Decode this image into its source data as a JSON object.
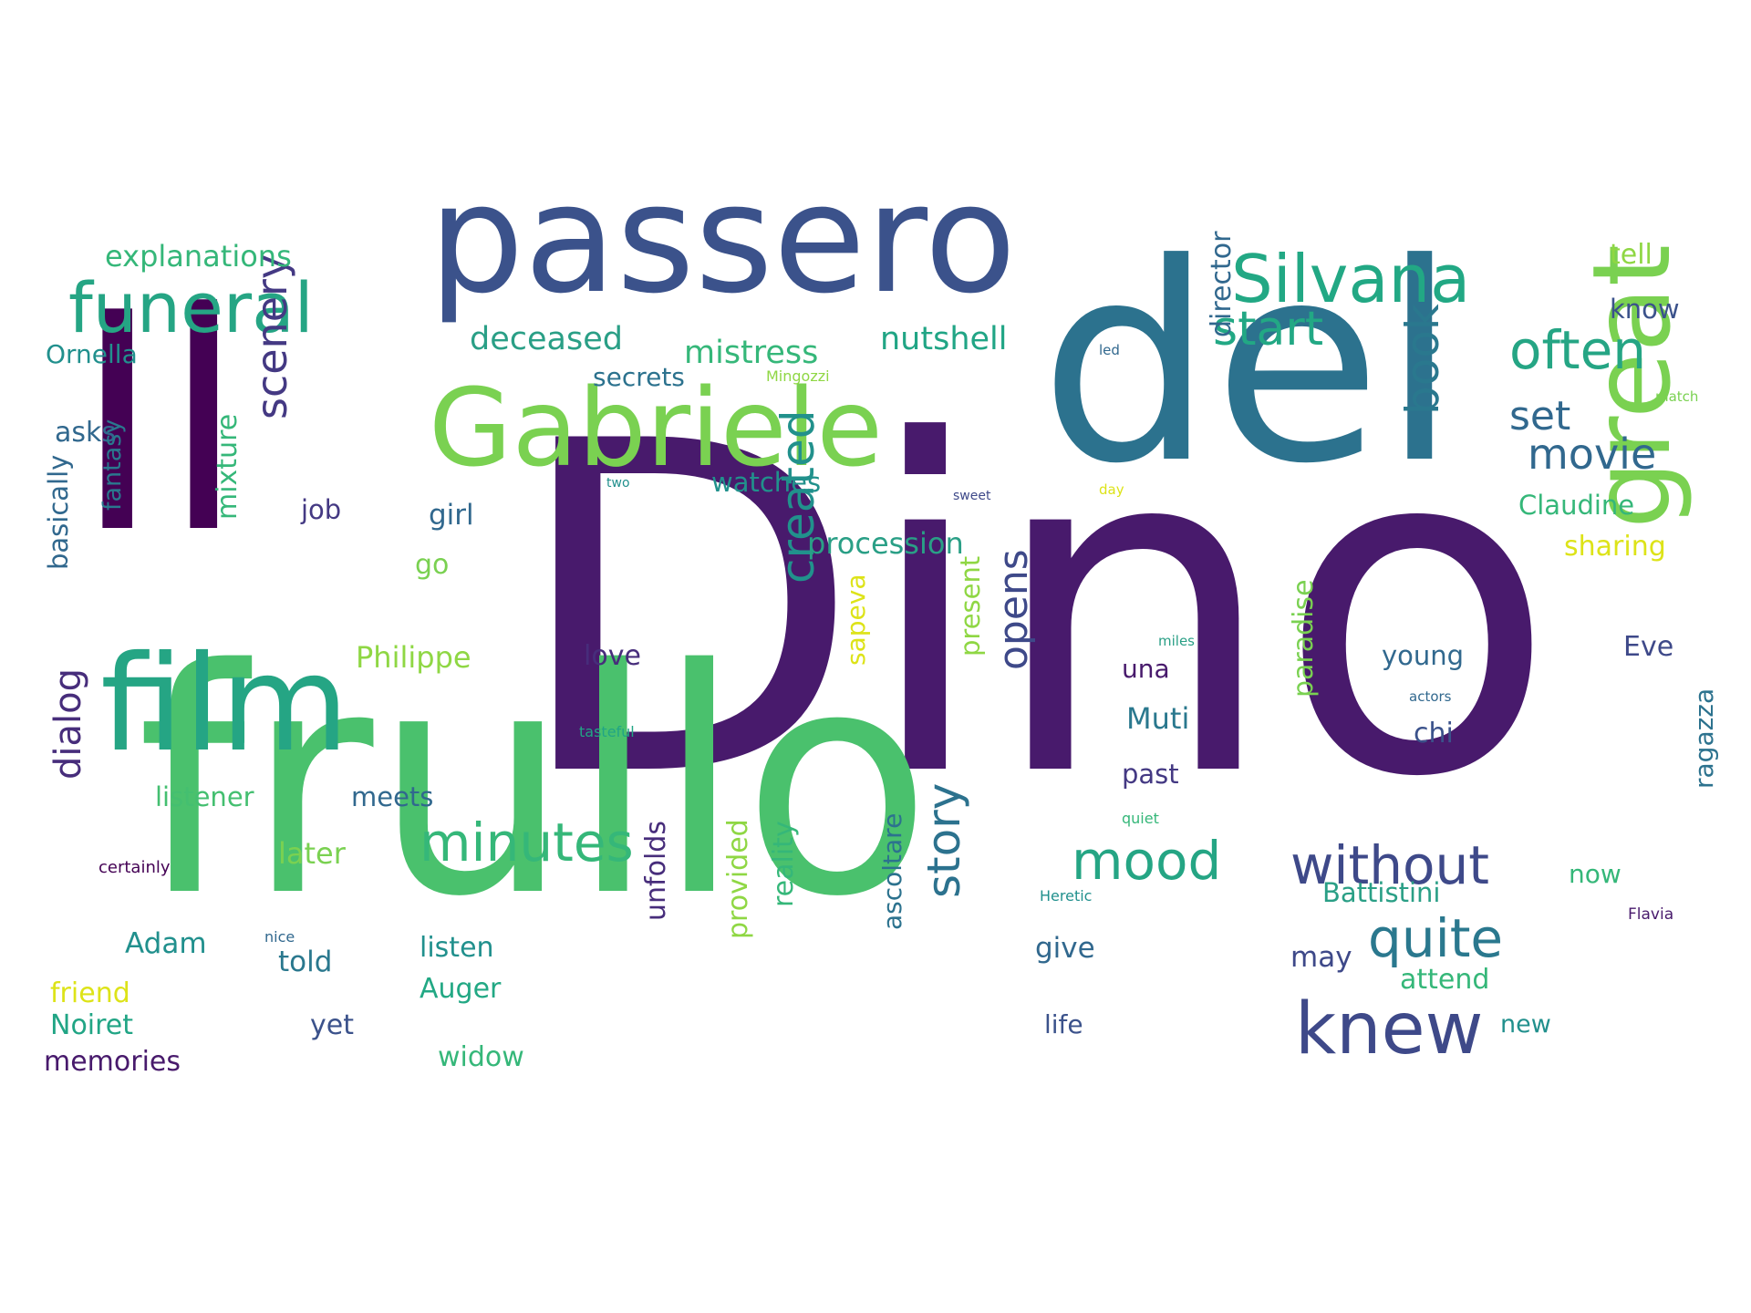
{
  "words": [
    {
      "text": "Dino",
      "color": "#481a6c",
      "vertical": false
    },
    {
      "text": "frullo",
      "color": "#4ac16d",
      "vertical": false
    },
    {
      "text": "del",
      "color": "#2c728e",
      "vertical": false
    },
    {
      "text": "Il",
      "color": "#440154",
      "vertical": false
    },
    {
      "text": "passero",
      "color": "#3b528b",
      "vertical": false
    },
    {
      "text": "Gabriele",
      "color": "#7ad151",
      "vertical": false
    },
    {
      "text": "film",
      "color": "#25a584",
      "vertical": false
    },
    {
      "text": "great",
      "color": "#7ad151",
      "vertical": true
    },
    {
      "text": "funeral",
      "color": "#25a584",
      "vertical": false
    },
    {
      "text": "Silvana",
      "color": "#22a884",
      "vertical": false
    },
    {
      "text": "knew",
      "color": "#3e4989",
      "vertical": false
    },
    {
      "text": "without",
      "color": "#3e4989",
      "vertical": false
    },
    {
      "text": "quite",
      "color": "#2a788e",
      "vertical": false
    },
    {
      "text": "minutes",
      "color": "#35b779",
      "vertical": false
    },
    {
      "text": "mood",
      "color": "#25a584",
      "vertical": false
    },
    {
      "text": "often",
      "color": "#25a584",
      "vertical": false
    },
    {
      "text": "start",
      "color": "#22a884",
      "vertical": false
    },
    {
      "text": "movie",
      "color": "#31688e",
      "vertical": false
    },
    {
      "text": "scenery",
      "color": "#443983",
      "vertical": true
    },
    {
      "text": "created",
      "color": "#21918c",
      "vertical": true
    },
    {
      "text": "story",
      "color": "#2c728e",
      "vertical": true
    },
    {
      "text": "book",
      "color": "#2a788e",
      "vertical": true
    },
    {
      "text": "opens",
      "color": "#3e4989",
      "vertical": true
    },
    {
      "text": "dialog",
      "color": "#472d7b",
      "vertical": true
    },
    {
      "text": "set",
      "color": "#31688e",
      "vertical": false
    },
    {
      "text": "explanations",
      "color": "#35b779",
      "vertical": false
    },
    {
      "text": "deceased",
      "color": "#2a9f86",
      "vertical": false
    },
    {
      "text": "mistress",
      "color": "#35b779",
      "vertical": false
    },
    {
      "text": "nutshell",
      "color": "#21a585",
      "vertical": false
    },
    {
      "text": "secrets",
      "color": "#2c728e",
      "vertical": false
    },
    {
      "text": "Ornella",
      "color": "#21908d",
      "vertical": false
    },
    {
      "text": "watches",
      "color": "#21918c",
      "vertical": false
    },
    {
      "text": "procession",
      "color": "#2a9f86",
      "vertical": false
    },
    {
      "text": "Claudine",
      "color": "#35b779",
      "vertical": false
    },
    {
      "text": "sharing",
      "color": "#dde318",
      "vertical": false
    },
    {
      "text": "tell",
      "color": "#8fd744",
      "vertical": false
    },
    {
      "text": "know",
      "color": "#3b528b",
      "vertical": false
    },
    {
      "text": "director",
      "color": "#31688e",
      "vertical": true
    },
    {
      "text": "asks",
      "color": "#31688e",
      "vertical": false
    },
    {
      "text": "job",
      "color": "#443983",
      "vertical": false
    },
    {
      "text": "girl",
      "color": "#31688e",
      "vertical": false
    },
    {
      "text": "go",
      "color": "#7ad151",
      "vertical": false
    },
    {
      "text": "mixture",
      "color": "#35b779",
      "vertical": true
    },
    {
      "text": "fantasy",
      "color": "#2a788e",
      "vertical": true
    },
    {
      "text": "basically",
      "color": "#31688e",
      "vertical": true
    },
    {
      "text": "Philippe",
      "color": "#8fd744",
      "vertical": false
    },
    {
      "text": "love",
      "color": "#472d7b",
      "vertical": false
    },
    {
      "text": "sapeva",
      "color": "#dde318",
      "vertical": true
    },
    {
      "text": "present",
      "color": "#8fd744",
      "vertical": true
    },
    {
      "text": "paradise",
      "color": "#7ad151",
      "vertical": true
    },
    {
      "text": "una",
      "color": "#481a6c",
      "vertical": false
    },
    {
      "text": "Muti",
      "color": "#2a788e",
      "vertical": false
    },
    {
      "text": "young",
      "color": "#31688e",
      "vertical": false
    },
    {
      "text": "Eve",
      "color": "#3e4989",
      "vertical": false
    },
    {
      "text": "chi",
      "color": "#3b528b",
      "vertical": false
    },
    {
      "text": "ragazza",
      "color": "#2c728e",
      "vertical": true
    },
    {
      "text": "listener",
      "color": "#44bf70",
      "vertical": false
    },
    {
      "text": "meets",
      "color": "#31688e",
      "vertical": false
    },
    {
      "text": "past",
      "color": "#443983",
      "vertical": false
    },
    {
      "text": "later",
      "color": "#7ad151",
      "vertical": false
    },
    {
      "text": "Adam",
      "color": "#21908d",
      "vertical": false
    },
    {
      "text": "told",
      "color": "#2a788e",
      "vertical": false
    },
    {
      "text": "listen",
      "color": "#21908d",
      "vertical": false
    },
    {
      "text": "Auger",
      "color": "#22a884",
      "vertical": false
    },
    {
      "text": "unfolds",
      "color": "#472d7b",
      "vertical": true
    },
    {
      "text": "provided",
      "color": "#8fd744",
      "vertical": true
    },
    {
      "text": "reality",
      "color": "#35b779",
      "vertical": true
    },
    {
      "text": "ascoltare",
      "color": "#2c728e",
      "vertical": true
    },
    {
      "text": "give",
      "color": "#31688e",
      "vertical": false
    },
    {
      "text": "may",
      "color": "#3e4989",
      "vertical": false
    },
    {
      "text": "attend",
      "color": "#35b779",
      "vertical": false
    },
    {
      "text": "Battistini",
      "color": "#2a9f86",
      "vertical": false
    },
    {
      "text": "now",
      "color": "#35b779",
      "vertical": false
    },
    {
      "text": "friend",
      "color": "#dde318",
      "vertical": false
    },
    {
      "text": "Noiret",
      "color": "#21a585",
      "vertical": false
    },
    {
      "text": "memories",
      "color": "#481a6c",
      "vertical": false
    },
    {
      "text": "yet",
      "color": "#3b528b",
      "vertical": false
    },
    {
      "text": "widow",
      "color": "#35b779",
      "vertical": false
    },
    {
      "text": "life",
      "color": "#3b528b",
      "vertical": false
    },
    {
      "text": "new",
      "color": "#21908d",
      "vertical": false
    },
    {
      "text": "certainly",
      "color": "#440154",
      "vertical": false
    },
    {
      "text": "nice",
      "color": "#31688e",
      "vertical": false
    },
    {
      "text": "Heretic",
      "color": "#21908d",
      "vertical": false
    },
    {
      "text": "quiet",
      "color": "#35b779",
      "vertical": false
    },
    {
      "text": "Flavia",
      "color": "#481a6c",
      "vertical": false
    },
    {
      "text": "miles",
      "color": "#2a9f86",
      "vertical": false
    },
    {
      "text": "actors",
      "color": "#31688e",
      "vertical": false
    },
    {
      "text": "tasteful",
      "color": "#21a585",
      "vertical": false
    },
    {
      "text": "two",
      "color": "#21908d",
      "vertical": false
    },
    {
      "text": "sweet",
      "color": "#3e4989",
      "vertical": false
    },
    {
      "text": "day",
      "color": "#dde318",
      "vertical": false
    },
    {
      "text": "led",
      "color": "#31688e",
      "vertical": false
    },
    {
      "text": "match",
      "color": "#7ad151",
      "vertical": false
    },
    {
      "text": "Mingozzi",
      "color": "#8fd744",
      "vertical": false
    }
  ]
}
